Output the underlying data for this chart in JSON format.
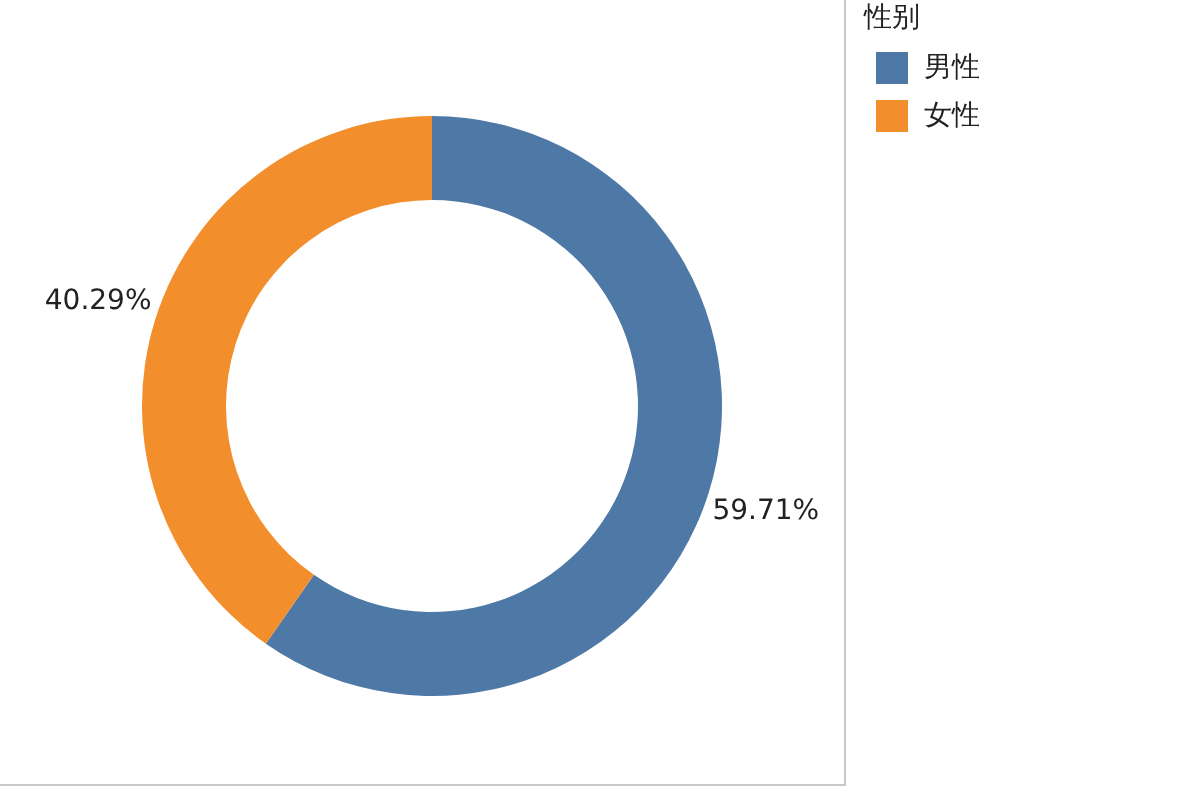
{
  "chart_data": {
    "type": "donut",
    "categories": [
      "男性",
      "女性"
    ],
    "values": [
      59.71,
      40.29
    ],
    "colors": [
      "#4e79a7",
      "#f28e2b"
    ],
    "value_labels": [
      "59.71%",
      "40.29%"
    ],
    "legend_title": "性别",
    "legend": "top right"
  }
}
